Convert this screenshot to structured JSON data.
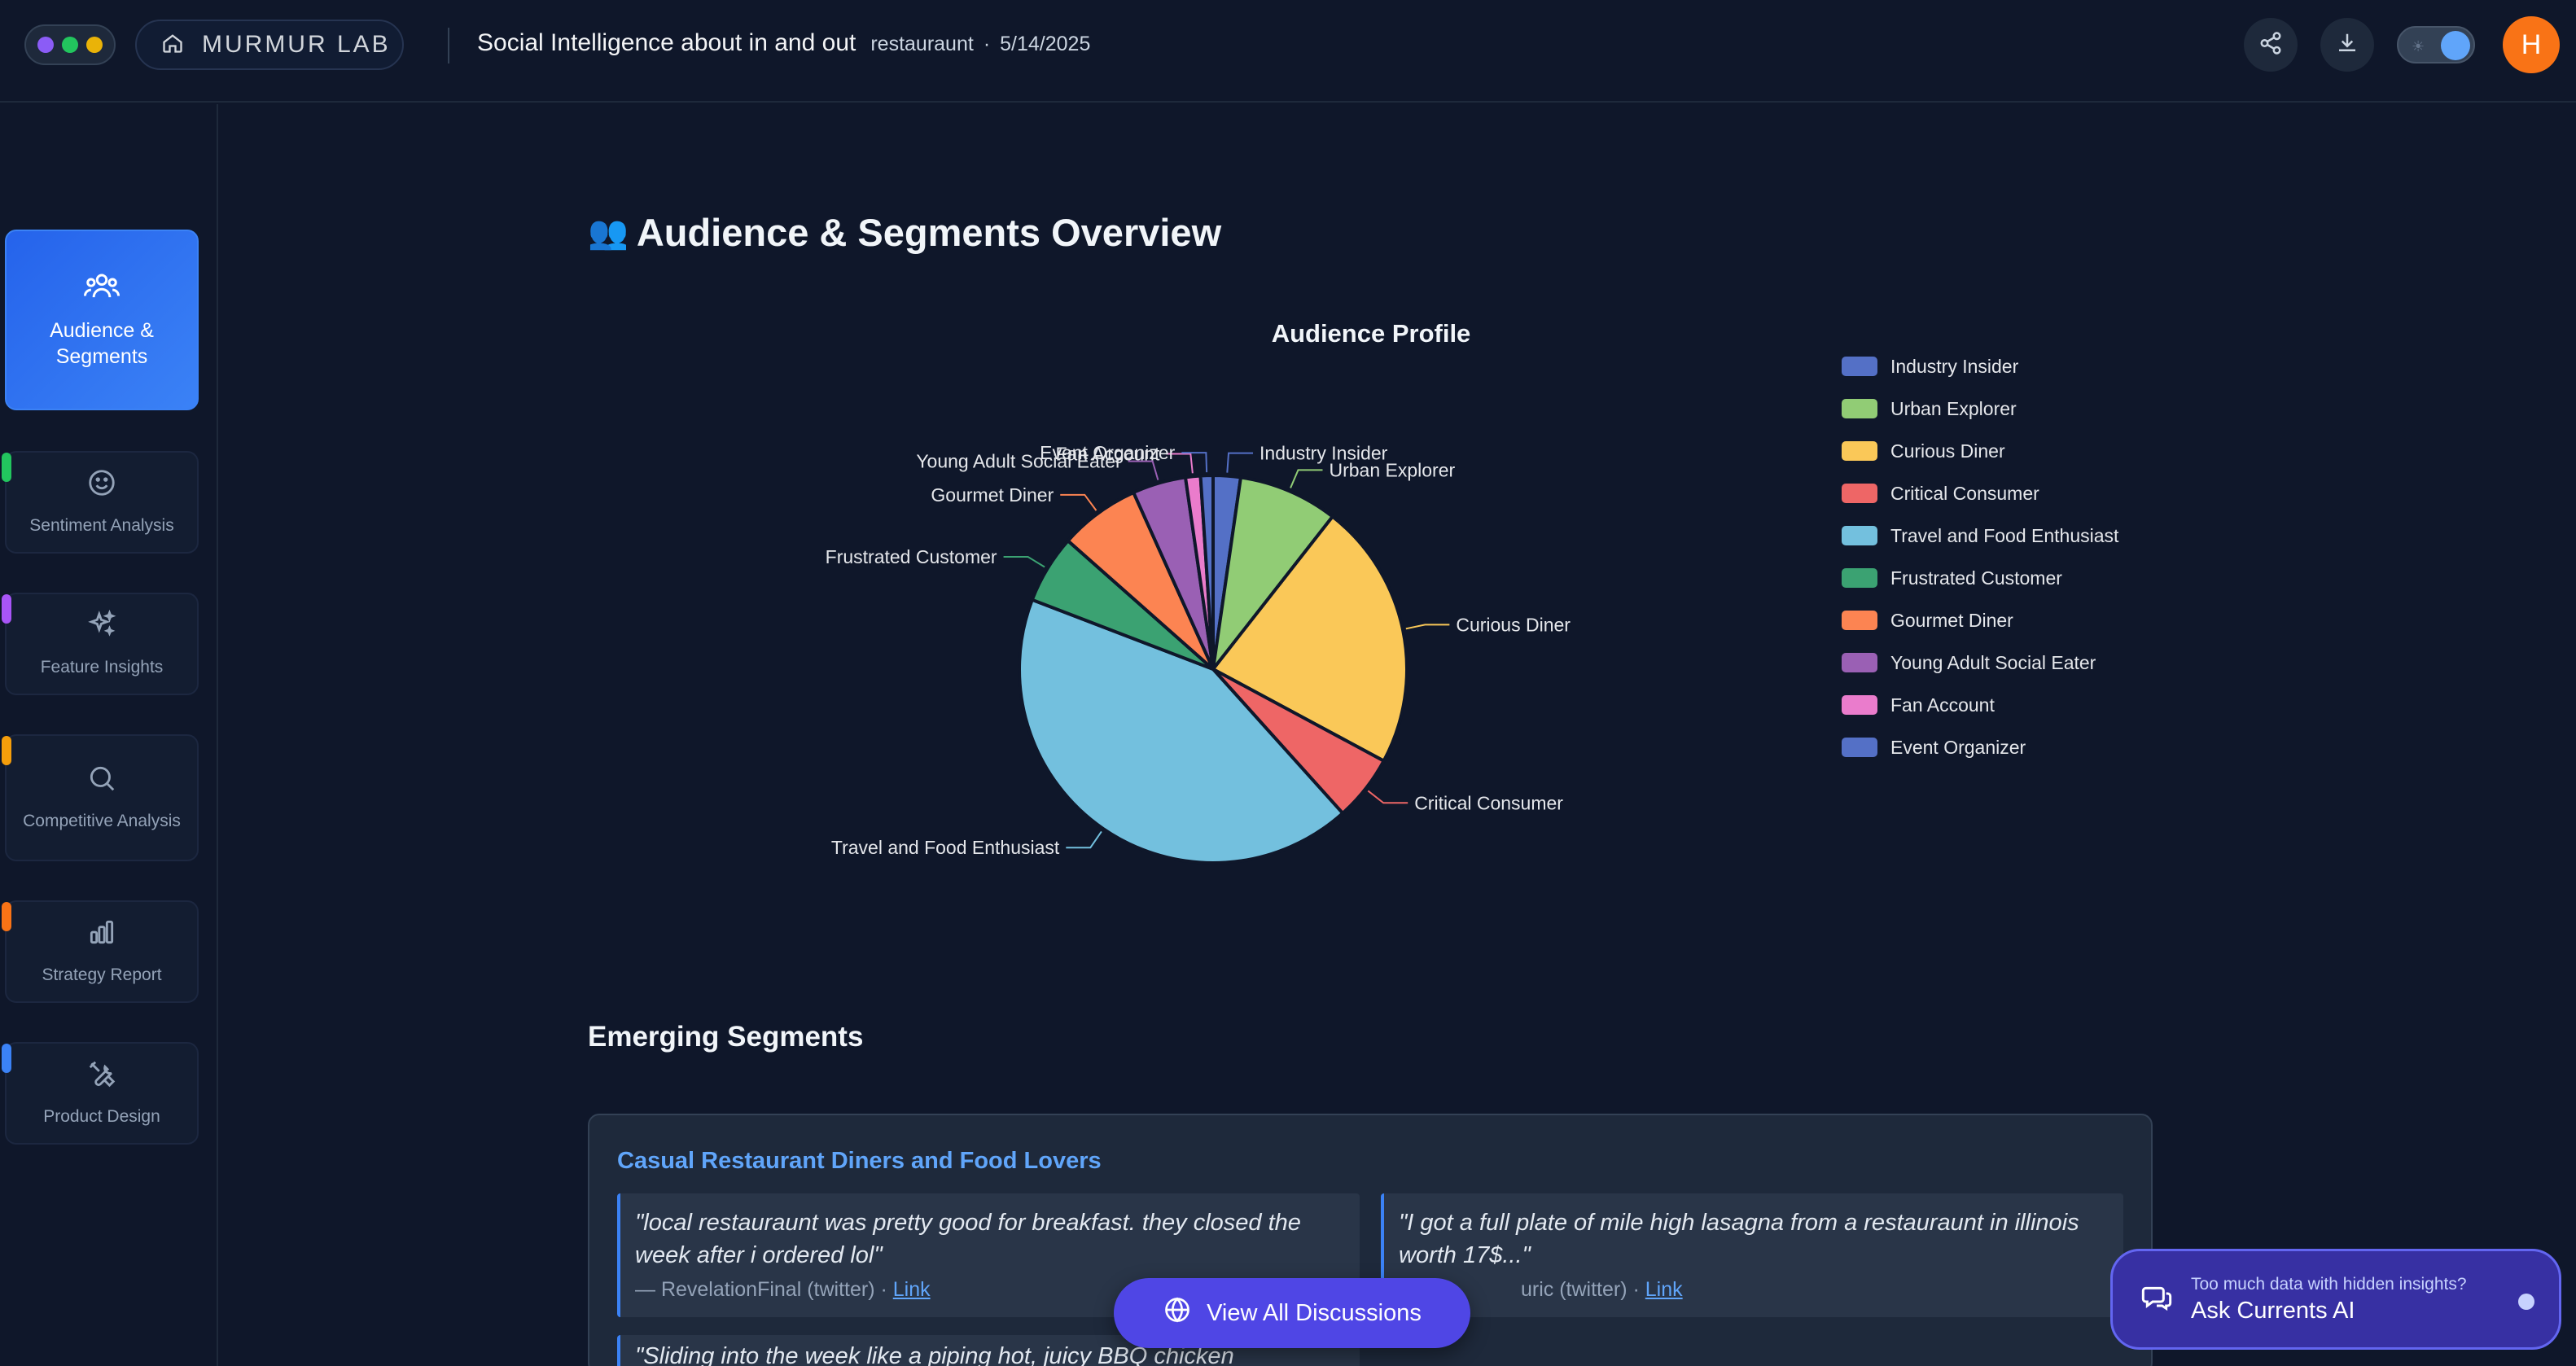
{
  "window_dots": {
    "colors": [
      "#8b5cf6",
      "#22c55e",
      "#eab308"
    ]
  },
  "brand": {
    "name": "MURMUR LAB",
    "icon": "home-icon"
  },
  "header": {
    "title": "Social Intelligence about in and out",
    "keyword": "restauraunt",
    "separator": "·",
    "date": "5/14/2025"
  },
  "toolbar": {
    "share_icon": "share-icon",
    "download_icon": "download-icon",
    "theme_toggle_on": true,
    "avatar_initial": "H"
  },
  "sidebar": {
    "items": [
      {
        "label": "Audience & Segments",
        "icon": "users-icon",
        "accent": "#3b82f6",
        "active": true
      },
      {
        "label": "Sentiment Analysis",
        "icon": "smile-icon",
        "accent": "#22c55e",
        "active": false
      },
      {
        "label": "Feature Insights",
        "icon": "sparkles-icon",
        "accent": "#a855f7",
        "active": false
      },
      {
        "label": "Competitive Analysis",
        "icon": "search-icon",
        "accent": "#f59e0b",
        "active": false
      },
      {
        "label": "Strategy Report",
        "icon": "bar-chart-icon",
        "accent": "#f97316",
        "active": false
      },
      {
        "label": "Product Design",
        "icon": "tools-icon",
        "accent": "#3b82f6",
        "active": false
      }
    ]
  },
  "section": {
    "title": "Audience & Segments Overview",
    "emoji": "👥"
  },
  "chart_data": {
    "type": "pie",
    "title": "Audience Profile",
    "legend_position": "right",
    "slices": [
      {
        "name": "Industry Insider",
        "value": 2.2,
        "color": "#5470c6"
      },
      {
        "name": "Urban Explorer",
        "value": 8.0,
        "color": "#91cc75"
      },
      {
        "name": "Curious Diner",
        "value": 21.5,
        "color": "#fac858"
      },
      {
        "name": "Critical Consumer",
        "value": 5.3,
        "color": "#ee6666"
      },
      {
        "name": "Travel and Food Enthusiast",
        "value": 41.0,
        "color": "#73c0de"
      },
      {
        "name": "Frustrated Customer",
        "value": 5.5,
        "color": "#3ba272"
      },
      {
        "name": "Gourmet Diner",
        "value": 6.5,
        "color": "#fc8452"
      },
      {
        "name": "Young Adult Social Eater",
        "value": 4.3,
        "color": "#9a60b4"
      },
      {
        "name": "Fan Account",
        "value": 1.2,
        "color": "#ea7ccc"
      },
      {
        "name": "Event Organizer",
        "value": 1.0,
        "color": "#5470c6"
      }
    ]
  },
  "emerging": {
    "title": "Emerging Segments",
    "card": {
      "title": "Casual Restaurant Diners and Food Lovers",
      "quotes": [
        {
          "text": "\"local restauraunt was pretty good for breakfast. they closed the week after i ordered lol\"",
          "source": "— RevelationFinal (twitter) · ",
          "link": "Link"
        },
        {
          "text": "\"I got a full plate of mile high lasagna from a restauraunt in illinois worth 17$...\"",
          "source": "uric (twitter) · ",
          "link": "Link"
        }
      ],
      "partial_quote": "\"Sliding into the week like a piping hot, juicy BBQ chicken"
    }
  },
  "view_all": {
    "label": "View All Discussions",
    "icon": "globe-icon"
  },
  "ask_ai": {
    "hint": "Too much data with hidden insights?",
    "label": "Ask Currents AI",
    "icon": "chat-icon"
  }
}
